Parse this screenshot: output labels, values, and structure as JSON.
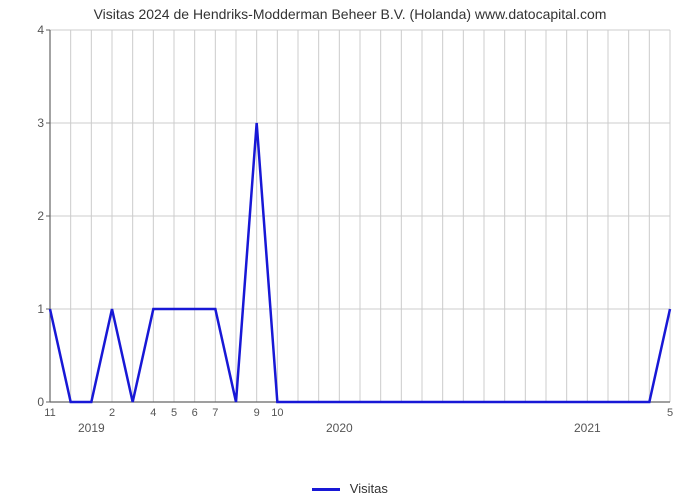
{
  "chart": {
    "type": "line",
    "title": "Visitas 2024 de Hendriks-Modderman Beheer B.V. (Holanda) www.datocapital.com",
    "title_fontsize": 14,
    "background_color": "#ffffff",
    "grid_color": "#cccccc",
    "axis_color": "#666666",
    "text_color": "#333333",
    "line_color": "#1818d6",
    "line_width": 2.5,
    "ylim": [
      0,
      4
    ],
    "ytick_step": 1,
    "yticks": [
      0,
      1,
      2,
      3,
      4
    ],
    "x_points": 31,
    "x_minor_labels": [
      {
        "i": 0,
        "text": "11"
      },
      {
        "i": 3,
        "text": "2"
      },
      {
        "i": 5,
        "text": "4"
      },
      {
        "i": 6,
        "text": "5"
      },
      {
        "i": 7,
        "text": "6"
      },
      {
        "i": 8,
        "text": "7"
      },
      {
        "i": 10,
        "text": "9"
      },
      {
        "i": 11,
        "text": "10"
      },
      {
        "i": 30,
        "text": "5"
      }
    ],
    "x_major_labels": [
      {
        "i": 2,
        "text": "2019"
      },
      {
        "i": 14,
        "text": "2020"
      },
      {
        "i": 26,
        "text": "2021"
      }
    ],
    "values": [
      1,
      0,
      0,
      1,
      0,
      1,
      1,
      1,
      1,
      0,
      3,
      0,
      0,
      0,
      0,
      0,
      0,
      0,
      0,
      0,
      0,
      0,
      0,
      0,
      0,
      0,
      0,
      0,
      0,
      0,
      1
    ],
    "legend_label": "Visitas"
  }
}
